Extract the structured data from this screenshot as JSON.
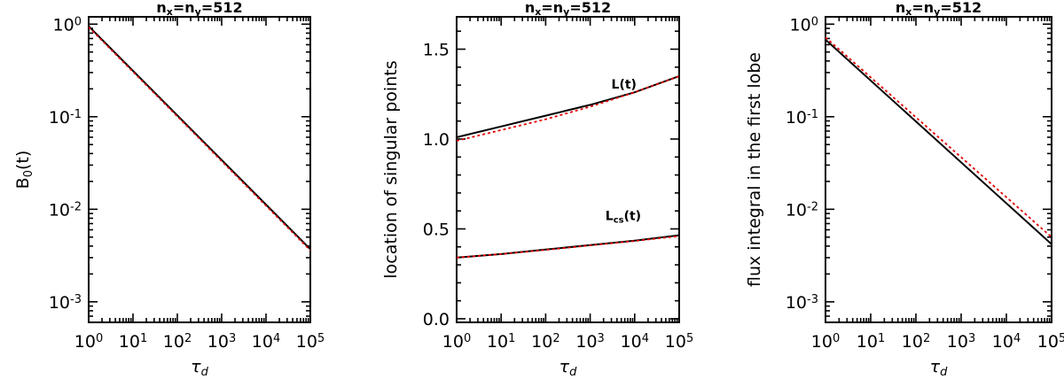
{
  "chart_data": [
    {
      "type": "line",
      "title": "n_x=n_y=512",
      "xlabel": "τ_d",
      "ylabel": "B_0(t)",
      "xscale": "log",
      "yscale": "log",
      "xlim": [
        1,
        100000
      ],
      "ylim": [
        0.0006,
        1.2
      ],
      "xticks": [
        1,
        10,
        100,
        1000,
        10000,
        100000
      ],
      "xtick_labels": [
        [
          "10",
          "0"
        ],
        [
          "10",
          "1"
        ],
        [
          "10",
          "2"
        ],
        [
          "10",
          "3"
        ],
        [
          "10",
          "4"
        ],
        [
          "10",
          "5"
        ]
      ],
      "yticks": [
        1,
        0.1,
        0.01,
        0.001
      ],
      "ytick_labels": [
        [
          "10",
          "0"
        ],
        [
          "10",
          "-1"
        ],
        [
          "10",
          "-2"
        ],
        [
          "10",
          "-3"
        ]
      ],
      "series": [
        {
          "color": "#000000",
          "dashed": false,
          "x": [
            1,
            100000
          ],
          "y": [
            0.95,
            0.0037
          ]
        },
        {
          "color": "#e00000",
          "dashed": true,
          "x": [
            1,
            100000
          ],
          "y": [
            0.93,
            0.0036
          ]
        }
      ],
      "annotations": []
    },
    {
      "type": "line",
      "title": "n_x=n_y=512",
      "xlabel": "τ_d",
      "ylabel": "location of singular points",
      "xscale": "log",
      "yscale": "linear",
      "xlim": [
        1,
        100000
      ],
      "ylim": [
        -0.02,
        1.68
      ],
      "xticks": [
        1,
        10,
        100,
        1000,
        10000,
        100000
      ],
      "xtick_labels": [
        [
          "10",
          "0"
        ],
        [
          "10",
          "1"
        ],
        [
          "10",
          "2"
        ],
        [
          "10",
          "3"
        ],
        [
          "10",
          "4"
        ],
        [
          "10",
          "5"
        ]
      ],
      "yticks": [
        0,
        0.5,
        1,
        1.5
      ],
      "ytick_labels": [
        [
          "0.0",
          ""
        ],
        [
          "0.5",
          ""
        ],
        [
          "1.0",
          ""
        ],
        [
          "1.5",
          ""
        ]
      ],
      "series": [
        {
          "color": "#000000",
          "dashed": false,
          "x": [
            1,
            10,
            100,
            1000,
            10000,
            100000
          ],
          "y": [
            1.01,
            1.07,
            1.13,
            1.19,
            1.26,
            1.35
          ]
        },
        {
          "color": "#e00000",
          "dashed": true,
          "x": [
            1,
            10,
            100,
            1000,
            10000,
            100000
          ],
          "y": [
            0.99,
            1.05,
            1.11,
            1.18,
            1.26,
            1.35
          ]
        },
        {
          "color": "#000000",
          "dashed": false,
          "x": [
            1,
            10,
            100,
            1000,
            10000,
            100000
          ],
          "y": [
            0.34,
            0.36,
            0.385,
            0.41,
            0.435,
            0.465
          ]
        },
        {
          "color": "#e00000",
          "dashed": true,
          "x": [
            1,
            10,
            100,
            1000,
            10000,
            100000
          ],
          "y": [
            0.34,
            0.36,
            0.383,
            0.408,
            0.433,
            0.46
          ]
        }
      ],
      "annotations": [
        {
          "text": "L(t)",
          "sub": "",
          "x": 3000,
          "y": 1.28
        },
        {
          "text": "L",
          "sub": "cs",
          "suffix": "(t)",
          "x": 2200,
          "y": 0.55
        }
      ]
    },
    {
      "type": "line",
      "title": "n_x=n_y=512",
      "xlabel": "τ_d",
      "ylabel": "flux integral in the first lobe",
      "xscale": "log",
      "yscale": "log",
      "xlim": [
        1,
        100000
      ],
      "ylim": [
        0.0006,
        1.2
      ],
      "xticks": [
        1,
        10,
        100,
        1000,
        10000,
        100000
      ],
      "xtick_labels": [
        [
          "10",
          "0"
        ],
        [
          "10",
          "1"
        ],
        [
          "10",
          "2"
        ],
        [
          "10",
          "3"
        ],
        [
          "10",
          "4"
        ],
        [
          "10",
          "5"
        ]
      ],
      "yticks": [
        1,
        0.1,
        0.01,
        0.001
      ],
      "ytick_labels": [
        [
          "10",
          "0"
        ],
        [
          "10",
          "-1"
        ],
        [
          "10",
          "-2"
        ],
        [
          "10",
          "-3"
        ]
      ],
      "series": [
        {
          "color": "#000000",
          "dashed": false,
          "x": [
            1,
            100000
          ],
          "y": [
            0.68,
            0.0042
          ]
        },
        {
          "color": "#e00000",
          "dashed": true,
          "x": [
            1,
            100000
          ],
          "y": [
            0.72,
            0.005
          ]
        }
      ],
      "annotations": []
    }
  ]
}
